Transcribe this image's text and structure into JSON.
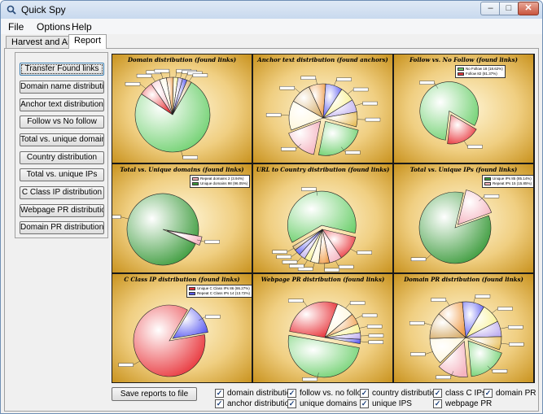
{
  "window": {
    "title": "Quick Spy",
    "min_icon": "minimize-icon",
    "max_icon": "maximize-icon",
    "close_icon": "close-icon"
  },
  "menu": [
    "File",
    "Options",
    "Help"
  ],
  "tabs": [
    {
      "label": "Harvest and Analyze",
      "active": false
    },
    {
      "label": "Report",
      "active": true
    }
  ],
  "sidebar": {
    "buttons": [
      "Transfer Found links",
      "Domain name distribution",
      "Anchor text distribution",
      "Follow vs No follow",
      "Total vs. unique domains",
      "Country distribution",
      "Total vs. unique IPs",
      "C Class IP distribution",
      "Webpage PR distribution",
      "Domain PR distribution"
    ]
  },
  "charts": [
    {
      "title": "Domain distribution (found links)",
      "legend": []
    },
    {
      "title": "Anchor text distribution (found anchors)",
      "legend": []
    },
    {
      "title": "Follow vs. No Follow (found links)",
      "legend": [
        "No Follow 18 (18.62%)",
        "Follow 82 (81.37%)"
      ]
    },
    {
      "title": "Total vs. Unique domains (found links)",
      "legend": [
        "Repeat domains 2 (3.94%)",
        "Unique domains 98 (96.05%)"
      ]
    },
    {
      "title": "URL to Country distribution (found links)",
      "legend": []
    },
    {
      "title": "Total vs. Unique IPs (found links)",
      "legend": [
        "Unique IPs 85 (85.14%)",
        "Repeat IPs 15 (15.85%)"
      ]
    },
    {
      "title": "C Class IP distribution (found links)",
      "legend": [
        "Unique C Class IPs 86 (86.27%)",
        "Repeat C Class IPs 14 (13.72%)"
      ]
    },
    {
      "title": "Webpage PR distribution (found links)",
      "legend": []
    },
    {
      "title": "Domain PR distribution (found links)",
      "legend": []
    }
  ],
  "chart_data": [
    {
      "type": "pie",
      "title": "Domain distribution (found links)",
      "values": [
        76,
        6,
        4,
        3,
        3,
        2,
        2,
        2,
        2
      ]
    },
    {
      "type": "pie",
      "title": "Anchor text distribution (found anchors)",
      "values": [
        24,
        16,
        14,
        10,
        8,
        8,
        7,
        6,
        7
      ]
    },
    {
      "type": "pie",
      "title": "Follow vs. No Follow (found links)",
      "categories": [
        "No Follow",
        "Follow"
      ],
      "values": [
        18.62,
        81.37
      ]
    },
    {
      "type": "pie",
      "title": "Total vs. Unique domains (found links)",
      "categories": [
        "Repeat domains",
        "Unique domains"
      ],
      "values": [
        3.94,
        96.05
      ]
    },
    {
      "type": "pie",
      "title": "URL to Country distribution (found links)",
      "values": [
        62,
        12,
        6,
        5,
        4,
        3,
        3,
        3,
        2
      ]
    },
    {
      "type": "pie",
      "title": "Total vs. Unique IPs (found links)",
      "categories": [
        "Unique IPs",
        "Repeat IPs"
      ],
      "values": [
        85.14,
        15.85
      ]
    },
    {
      "type": "pie",
      "title": "C Class IP distribution (found links)",
      "categories": [
        "Unique C Class IPs",
        "Repeat C Class IPs"
      ],
      "values": [
        86.27,
        13.72
      ]
    },
    {
      "type": "pie",
      "title": "Webpage PR distribution (found links)",
      "values": [
        50,
        28,
        8,
        5,
        4,
        3,
        2
      ]
    },
    {
      "type": "pie",
      "title": "Domain PR distribution (found links)",
      "values": [
        18,
        14,
        12,
        12,
        12,
        10,
        9,
        7,
        6
      ]
    }
  ],
  "colors": {
    "red": "#e8343a",
    "green": "#6ed06e",
    "pink": "#f5b4c0",
    "blue": "#5a5af0",
    "orange": "#f0a050",
    "yellow": "#f8f088",
    "cream": "#fff6d8",
    "lavender": "#c0b0f0",
    "tan": "#d8b070",
    "gold": "#e8c060"
  },
  "save_button": "Save reports to file",
  "checkboxes": [
    {
      "label": "domain distribution",
      "checked": true
    },
    {
      "label": "anchor distribution",
      "checked": true
    },
    {
      "label": "follow vs. no follow",
      "checked": true
    },
    {
      "label": "unique domains",
      "checked": true
    },
    {
      "label": "country distribution",
      "checked": true
    },
    {
      "label": "unique IPS",
      "checked": true
    },
    {
      "label": "class C IPs",
      "checked": true
    },
    {
      "label": "webpage PR",
      "checked": true
    },
    {
      "label": "domain PR",
      "checked": true
    }
  ]
}
